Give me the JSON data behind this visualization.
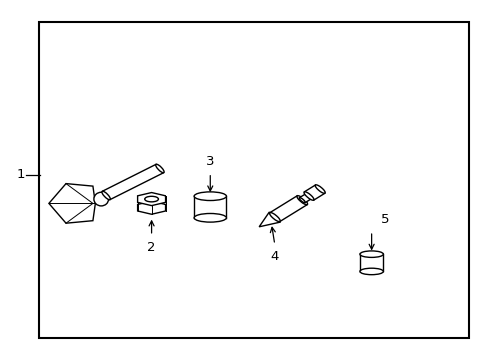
{
  "background_color": "#ffffff",
  "border_color": "#000000",
  "border_lw": 1.5,
  "label_color": "#000000",
  "figsize": [
    4.89,
    3.6
  ],
  "dpi": 100,
  "border": [
    0.08,
    0.06,
    0.88,
    0.88
  ]
}
